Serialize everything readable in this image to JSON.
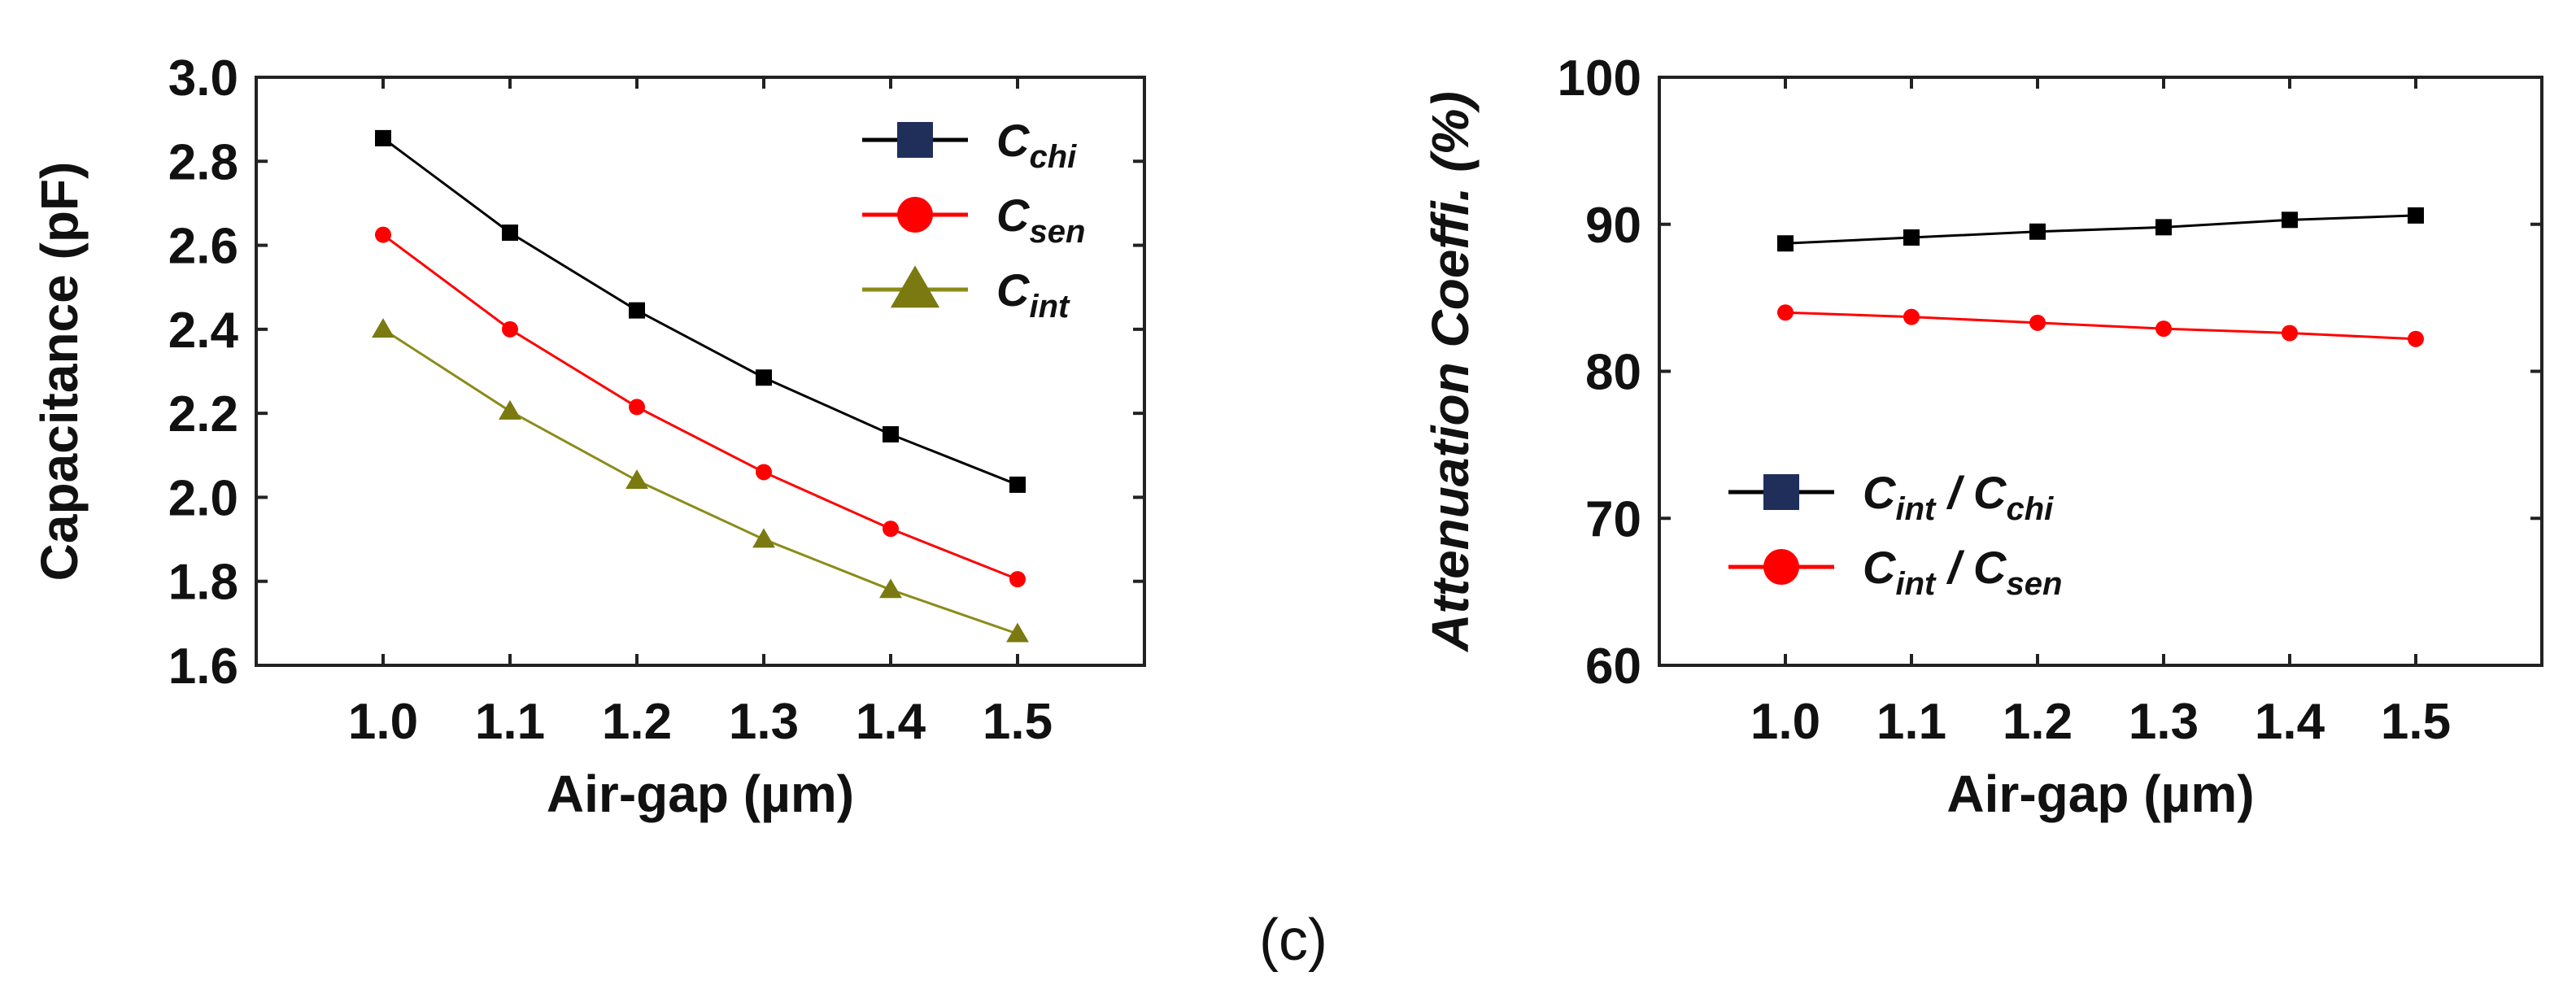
{
  "caption": "(c)",
  "chart_data": [
    {
      "type": "line",
      "title": "",
      "xlabel": "Air-gap (µm)",
      "ylabel": "Capacitance (pF)",
      "xlim": [
        0.9,
        1.6
      ],
      "ylim": [
        1.6,
        3.0
      ],
      "xticks": [
        "1.0",
        "1.1",
        "1.2",
        "1.3",
        "1.4",
        "1.5"
      ],
      "yticks": [
        "1.6",
        "1.8",
        "2.0",
        "2.2",
        "2.4",
        "2.6",
        "2.8",
        "3.0"
      ],
      "legend_position": "top-right",
      "grid": false,
      "x": [
        1.0,
        1.1,
        1.2,
        1.3,
        1.4,
        1.5
      ],
      "series": [
        {
          "name": "C_chi",
          "label_main": "C",
          "label_sub": "chi",
          "color": "#000000",
          "marker_color": "#1f2f5a",
          "marker": "square",
          "values": [
            2.855,
            2.63,
            2.445,
            2.285,
            2.15,
            2.03
          ]
        },
        {
          "name": "C_sen",
          "label_main": "C",
          "label_sub": "sen",
          "color": "#ff0000",
          "marker_color": "#ff0000",
          "marker": "circle",
          "values": [
            2.625,
            2.4,
            2.215,
            2.06,
            1.925,
            1.805
          ]
        },
        {
          "name": "C_int",
          "label_main": "C",
          "label_sub": "int",
          "color": "#8b8b1a",
          "marker_color": "#7a7a10",
          "marker": "triangle",
          "values": [
            2.4,
            2.205,
            2.04,
            1.9,
            1.78,
            1.675
          ]
        }
      ]
    },
    {
      "type": "line",
      "title": "",
      "xlabel": "Air-gap (µm)",
      "ylabel": "Attenuation Coeffi. (%)",
      "xlim": [
        0.9,
        1.6
      ],
      "ylim": [
        60,
        100
      ],
      "xticks": [
        "1.0",
        "1.1",
        "1.2",
        "1.3",
        "1.4",
        "1.5"
      ],
      "yticks": [
        "60",
        "70",
        "80",
        "90",
        "100"
      ],
      "legend_position": "bottom-left",
      "grid": false,
      "x": [
        1.0,
        1.1,
        1.2,
        1.3,
        1.4,
        1.5
      ],
      "series": [
        {
          "name": "C_int / C_chi",
          "label_main": "C",
          "label_sub": "int",
          "label_sep": " / C",
          "label_sub2": "chi",
          "color": "#000000",
          "marker_color": "#1f2f5a",
          "marker": "square",
          "values": [
            88.7,
            89.1,
            89.5,
            89.8,
            90.3,
            90.6
          ]
        },
        {
          "name": "C_int / C_sen",
          "label_main": "C",
          "label_sub": "int",
          "label_sep": " / C",
          "label_sub2": "sen",
          "color": "#ff0000",
          "marker_color": "#ff0000",
          "marker": "circle",
          "values": [
            84.0,
            83.7,
            83.3,
            82.9,
            82.6,
            82.2
          ]
        }
      ]
    }
  ]
}
